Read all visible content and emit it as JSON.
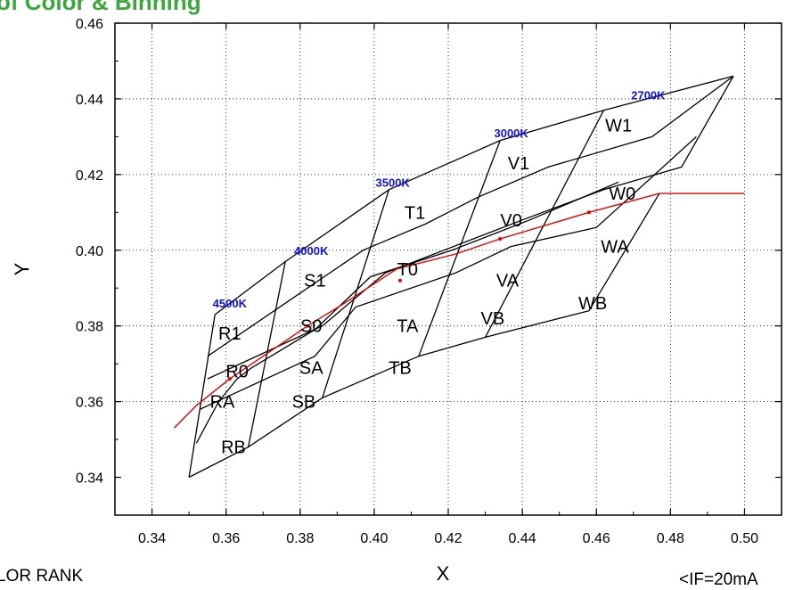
{
  "header": {
    "title": "of Color & Binning"
  },
  "footer": {
    "left_text": "LOR RANK",
    "right_text": "<IF=20mA"
  },
  "colors": {
    "grid": "#000000",
    "bin_lines": "#000000",
    "locus": "#e00000",
    "cct": "#1010e0"
  },
  "chart_data": {
    "type": "scatter",
    "title": "",
    "xlabel": "X",
    "ylabel": "Y",
    "xlim": [
      0.33,
      0.51
    ],
    "ylim": [
      0.33,
      0.46
    ],
    "xticks": [
      0.34,
      0.36,
      0.38,
      0.4,
      0.42,
      0.44,
      0.46,
      0.48,
      0.5
    ],
    "yticks": [
      0.34,
      0.36,
      0.38,
      0.4,
      0.42,
      0.44,
      0.46
    ],
    "xtick_labels": [
      "0.34",
      "0.36",
      "0.38",
      "0.40",
      "0.42",
      "0.44",
      "0.46",
      "0.48",
      "0.50"
    ],
    "ytick_labels": [
      "0.34",
      "0.36",
      "0.38",
      "0.40",
      "0.42",
      "0.44",
      "0.46"
    ],
    "grid": true,
    "boundaries": [
      [
        [
          0.35,
          0.34
        ],
        [
          0.366,
          0.348
        ],
        [
          0.386,
          0.361
        ],
        [
          0.412,
          0.372
        ],
        [
          0.43,
          0.377
        ],
        [
          0.458,
          0.384
        ],
        [
          0.477,
          0.415
        ]
      ],
      [
        [
          0.352,
          0.349
        ],
        [
          0.358,
          0.36
        ],
        [
          0.363,
          0.366
        ],
        [
          0.367,
          0.369
        ],
        [
          0.384,
          0.379
        ],
        [
          0.399,
          0.393
        ],
        [
          0.421,
          0.4
        ],
        [
          0.442,
          0.408
        ],
        [
          0.466,
          0.418
        ]
      ],
      [
        [
          0.353,
          0.358
        ],
        [
          0.384,
          0.372
        ],
        [
          0.395,
          0.385
        ],
        [
          0.422,
          0.394
        ],
        [
          0.437,
          0.401
        ],
        [
          0.46,
          0.406
        ],
        [
          0.487,
          0.43
        ]
      ],
      [
        [
          0.355,
          0.366
        ],
        [
          0.386,
          0.38
        ],
        [
          0.403,
          0.394
        ],
        [
          0.44,
          0.408
        ],
        [
          0.462,
          0.416
        ],
        [
          0.483,
          0.422
        ],
        [
          0.497,
          0.446
        ]
      ],
      [
        [
          0.355,
          0.372
        ],
        [
          0.376,
          0.386
        ],
        [
          0.397,
          0.4
        ],
        [
          0.414,
          0.407
        ],
        [
          0.428,
          0.414
        ],
        [
          0.447,
          0.422
        ],
        [
          0.475,
          0.43
        ],
        [
          0.497,
          0.446
        ]
      ],
      [
        [
          0.357,
          0.383
        ],
        [
          0.376,
          0.397
        ],
        [
          0.404,
          0.416
        ],
        [
          0.434,
          0.429
        ],
        [
          0.462,
          0.437
        ],
        [
          0.497,
          0.446
        ]
      ],
      [
        [
          0.35,
          0.34
        ],
        [
          0.357,
          0.383
        ]
      ],
      [
        [
          0.366,
          0.348
        ],
        [
          0.376,
          0.397
        ]
      ],
      [
        [
          0.386,
          0.361
        ],
        [
          0.404,
          0.416
        ]
      ],
      [
        [
          0.412,
          0.372
        ],
        [
          0.434,
          0.429
        ]
      ],
      [
        [
          0.43,
          0.377
        ],
        [
          0.462,
          0.437
        ]
      ]
    ],
    "locus": [
      [
        0.346,
        0.353
      ],
      [
        0.352,
        0.359
      ],
      [
        0.361,
        0.366
      ],
      [
        0.37,
        0.372
      ],
      [
        0.382,
        0.38
      ],
      [
        0.392,
        0.386
      ],
      [
        0.406,
        0.395
      ],
      [
        0.422,
        0.399
      ],
      [
        0.434,
        0.403
      ],
      [
        0.458,
        0.41
      ],
      [
        0.477,
        0.415
      ],
      [
        0.5,
        0.415
      ]
    ],
    "locus_markers": [
      [
        0.361,
        0.366
      ],
      [
        0.382,
        0.38
      ],
      [
        0.407,
        0.392
      ],
      [
        0.434,
        0.403
      ],
      [
        0.458,
        0.41
      ]
    ],
    "bin_labels": [
      {
        "text": "RB",
        "x": 0.362,
        "y": 0.348
      },
      {
        "text": "RA",
        "x": 0.359,
        "y": 0.36
      },
      {
        "text": "R0",
        "x": 0.363,
        "y": 0.368
      },
      {
        "text": "R1",
        "x": 0.361,
        "y": 0.378
      },
      {
        "text": "SB",
        "x": 0.381,
        "y": 0.36
      },
      {
        "text": "SA",
        "x": 0.383,
        "y": 0.369
      },
      {
        "text": "S0",
        "x": 0.383,
        "y": 0.38
      },
      {
        "text": "S1",
        "x": 0.384,
        "y": 0.392
      },
      {
        "text": "TB",
        "x": 0.407,
        "y": 0.369
      },
      {
        "text": "TA",
        "x": 0.409,
        "y": 0.38
      },
      {
        "text": "T0",
        "x": 0.409,
        "y": 0.395
      },
      {
        "text": "T1",
        "x": 0.411,
        "y": 0.41
      },
      {
        "text": "VB",
        "x": 0.432,
        "y": 0.382
      },
      {
        "text": "VA",
        "x": 0.436,
        "y": 0.392
      },
      {
        "text": "V0",
        "x": 0.437,
        "y": 0.408
      },
      {
        "text": "V1",
        "x": 0.439,
        "y": 0.423
      },
      {
        "text": "WB",
        "x": 0.459,
        "y": 0.386
      },
      {
        "text": "WA",
        "x": 0.465,
        "y": 0.401
      },
      {
        "text": "W0",
        "x": 0.467,
        "y": 0.415
      },
      {
        "text": "W1",
        "x": 0.466,
        "y": 0.433
      }
    ],
    "cct_labels": [
      {
        "text": "4500K",
        "x": 0.361,
        "y": 0.386
      },
      {
        "text": "4000K",
        "x": 0.383,
        "y": 0.4
      },
      {
        "text": "3500K",
        "x": 0.405,
        "y": 0.418
      },
      {
        "text": "3000K",
        "x": 0.437,
        "y": 0.431
      },
      {
        "text": "2700K",
        "x": 0.474,
        "y": 0.441
      }
    ]
  }
}
